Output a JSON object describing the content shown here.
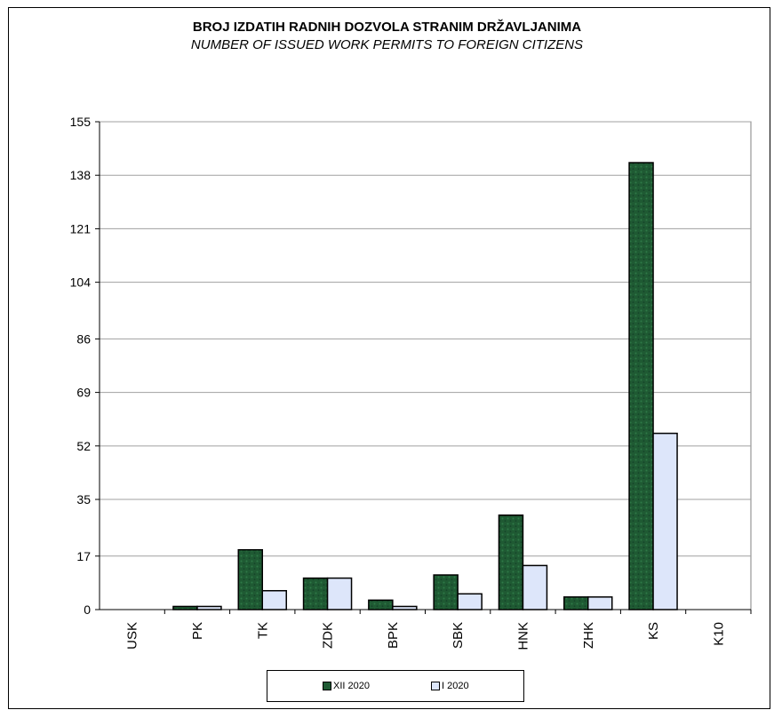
{
  "chart_data": {
    "type": "bar",
    "title": "BROJ IZDATIH RADNIH DOZVOLA  STRANIM DRŽAVLJANIMA",
    "subtitle": "NUMBER OF ISSUED WORK PERMITS TO FOREIGN CITIZENS",
    "categories": [
      "USK",
      "PK",
      "TK",
      "ZDK",
      "BPK",
      "SBK",
      "HNK",
      "ZHK",
      "KS",
      "K10"
    ],
    "series": [
      {
        "name": "XII 2020",
        "values": [
          0,
          1,
          19,
          10,
          3,
          11,
          30,
          4,
          142,
          0
        ],
        "color": "#1f5a33"
      },
      {
        "name": "I 2020",
        "values": [
          0,
          1,
          6,
          10,
          1,
          5,
          14,
          4,
          56,
          0
        ],
        "color": "#dde6fa"
      }
    ],
    "yticks": [
      0,
      17,
      35,
      52,
      69,
      86,
      104,
      121,
      138,
      155
    ],
    "ylim": [
      0,
      155
    ],
    "grid": true,
    "legend_position": "bottom"
  }
}
